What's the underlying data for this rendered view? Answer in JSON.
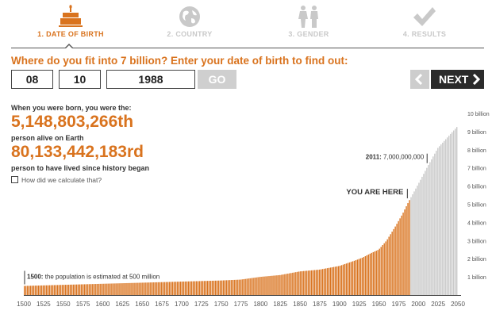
{
  "steps": [
    {
      "label": "1. DATE OF BIRTH",
      "icon": "cake-icon",
      "active": true
    },
    {
      "label": "2. COUNTRY",
      "icon": "globe-icon",
      "active": false
    },
    {
      "label": "3. GENDER",
      "icon": "gender-icon",
      "active": false
    },
    {
      "label": "4. RESULTS",
      "icon": "checkmark-icon",
      "active": false
    }
  ],
  "question": "Where do you fit into 7 billion? Enter your date of birth to find out:",
  "dob": {
    "day": "08",
    "month": "10",
    "year": "1988"
  },
  "buttons": {
    "go": "GO",
    "prev": "<",
    "next": "NEXT"
  },
  "results": {
    "intro": "When you were born, you were the:",
    "alive_rank": "5,148,803,266th",
    "alive_caption": "person alive on Earth",
    "ever_rank": "80,133,442,183rd",
    "ever_caption": "person to have lived since history began",
    "how_link": "How did we calculate that?"
  },
  "chart_data": {
    "type": "bar",
    "unit": "billion",
    "x_ticks": [
      1500,
      1525,
      1550,
      1575,
      1600,
      1625,
      1650,
      1675,
      1700,
      1725,
      1750,
      1775,
      1800,
      1825,
      1850,
      1875,
      1900,
      1925,
      1950,
      1975,
      2000,
      2025,
      2050
    ],
    "y_ticks": [
      "1 billion",
      "2 billion",
      "3 billion",
      "4 billion",
      "5 billion",
      "6 billion",
      "7 billion",
      "8 billion",
      "9 billion",
      "10 billion"
    ],
    "xlim": [
      1500,
      2050
    ],
    "ylim": [
      0,
      10
    ],
    "highlight_until": 1988,
    "population_points": [
      [
        1500,
        0.5
      ],
      [
        1750,
        0.8
      ],
      [
        1775,
        0.85
      ],
      [
        1800,
        1.0
      ],
      [
        1825,
        1.1
      ],
      [
        1850,
        1.3
      ],
      [
        1875,
        1.4
      ],
      [
        1900,
        1.6
      ],
      [
        1910,
        1.75
      ],
      [
        1920,
        1.9
      ],
      [
        1930,
        2.07
      ],
      [
        1940,
        2.3
      ],
      [
        1950,
        2.5
      ],
      [
        1960,
        3.0
      ],
      [
        1970,
        3.7
      ],
      [
        1975,
        4.07
      ],
      [
        1980,
        4.45
      ],
      [
        1988,
        5.15
      ],
      [
        2000,
        6.1
      ],
      [
        2011,
        7.0
      ],
      [
        2025,
        8.1
      ],
      [
        2050,
        9.3
      ]
    ],
    "annotations": {
      "start": {
        "year": "1500:",
        "text": "the population is estimated at 500 million"
      },
      "milestone": {
        "year": "2011:",
        "text": "7,000,000,000"
      },
      "you_are_here": "YOU ARE HERE"
    },
    "colors": {
      "past": "#d9731e",
      "future": "#c8c8c8",
      "accent": "#d9731e"
    }
  }
}
